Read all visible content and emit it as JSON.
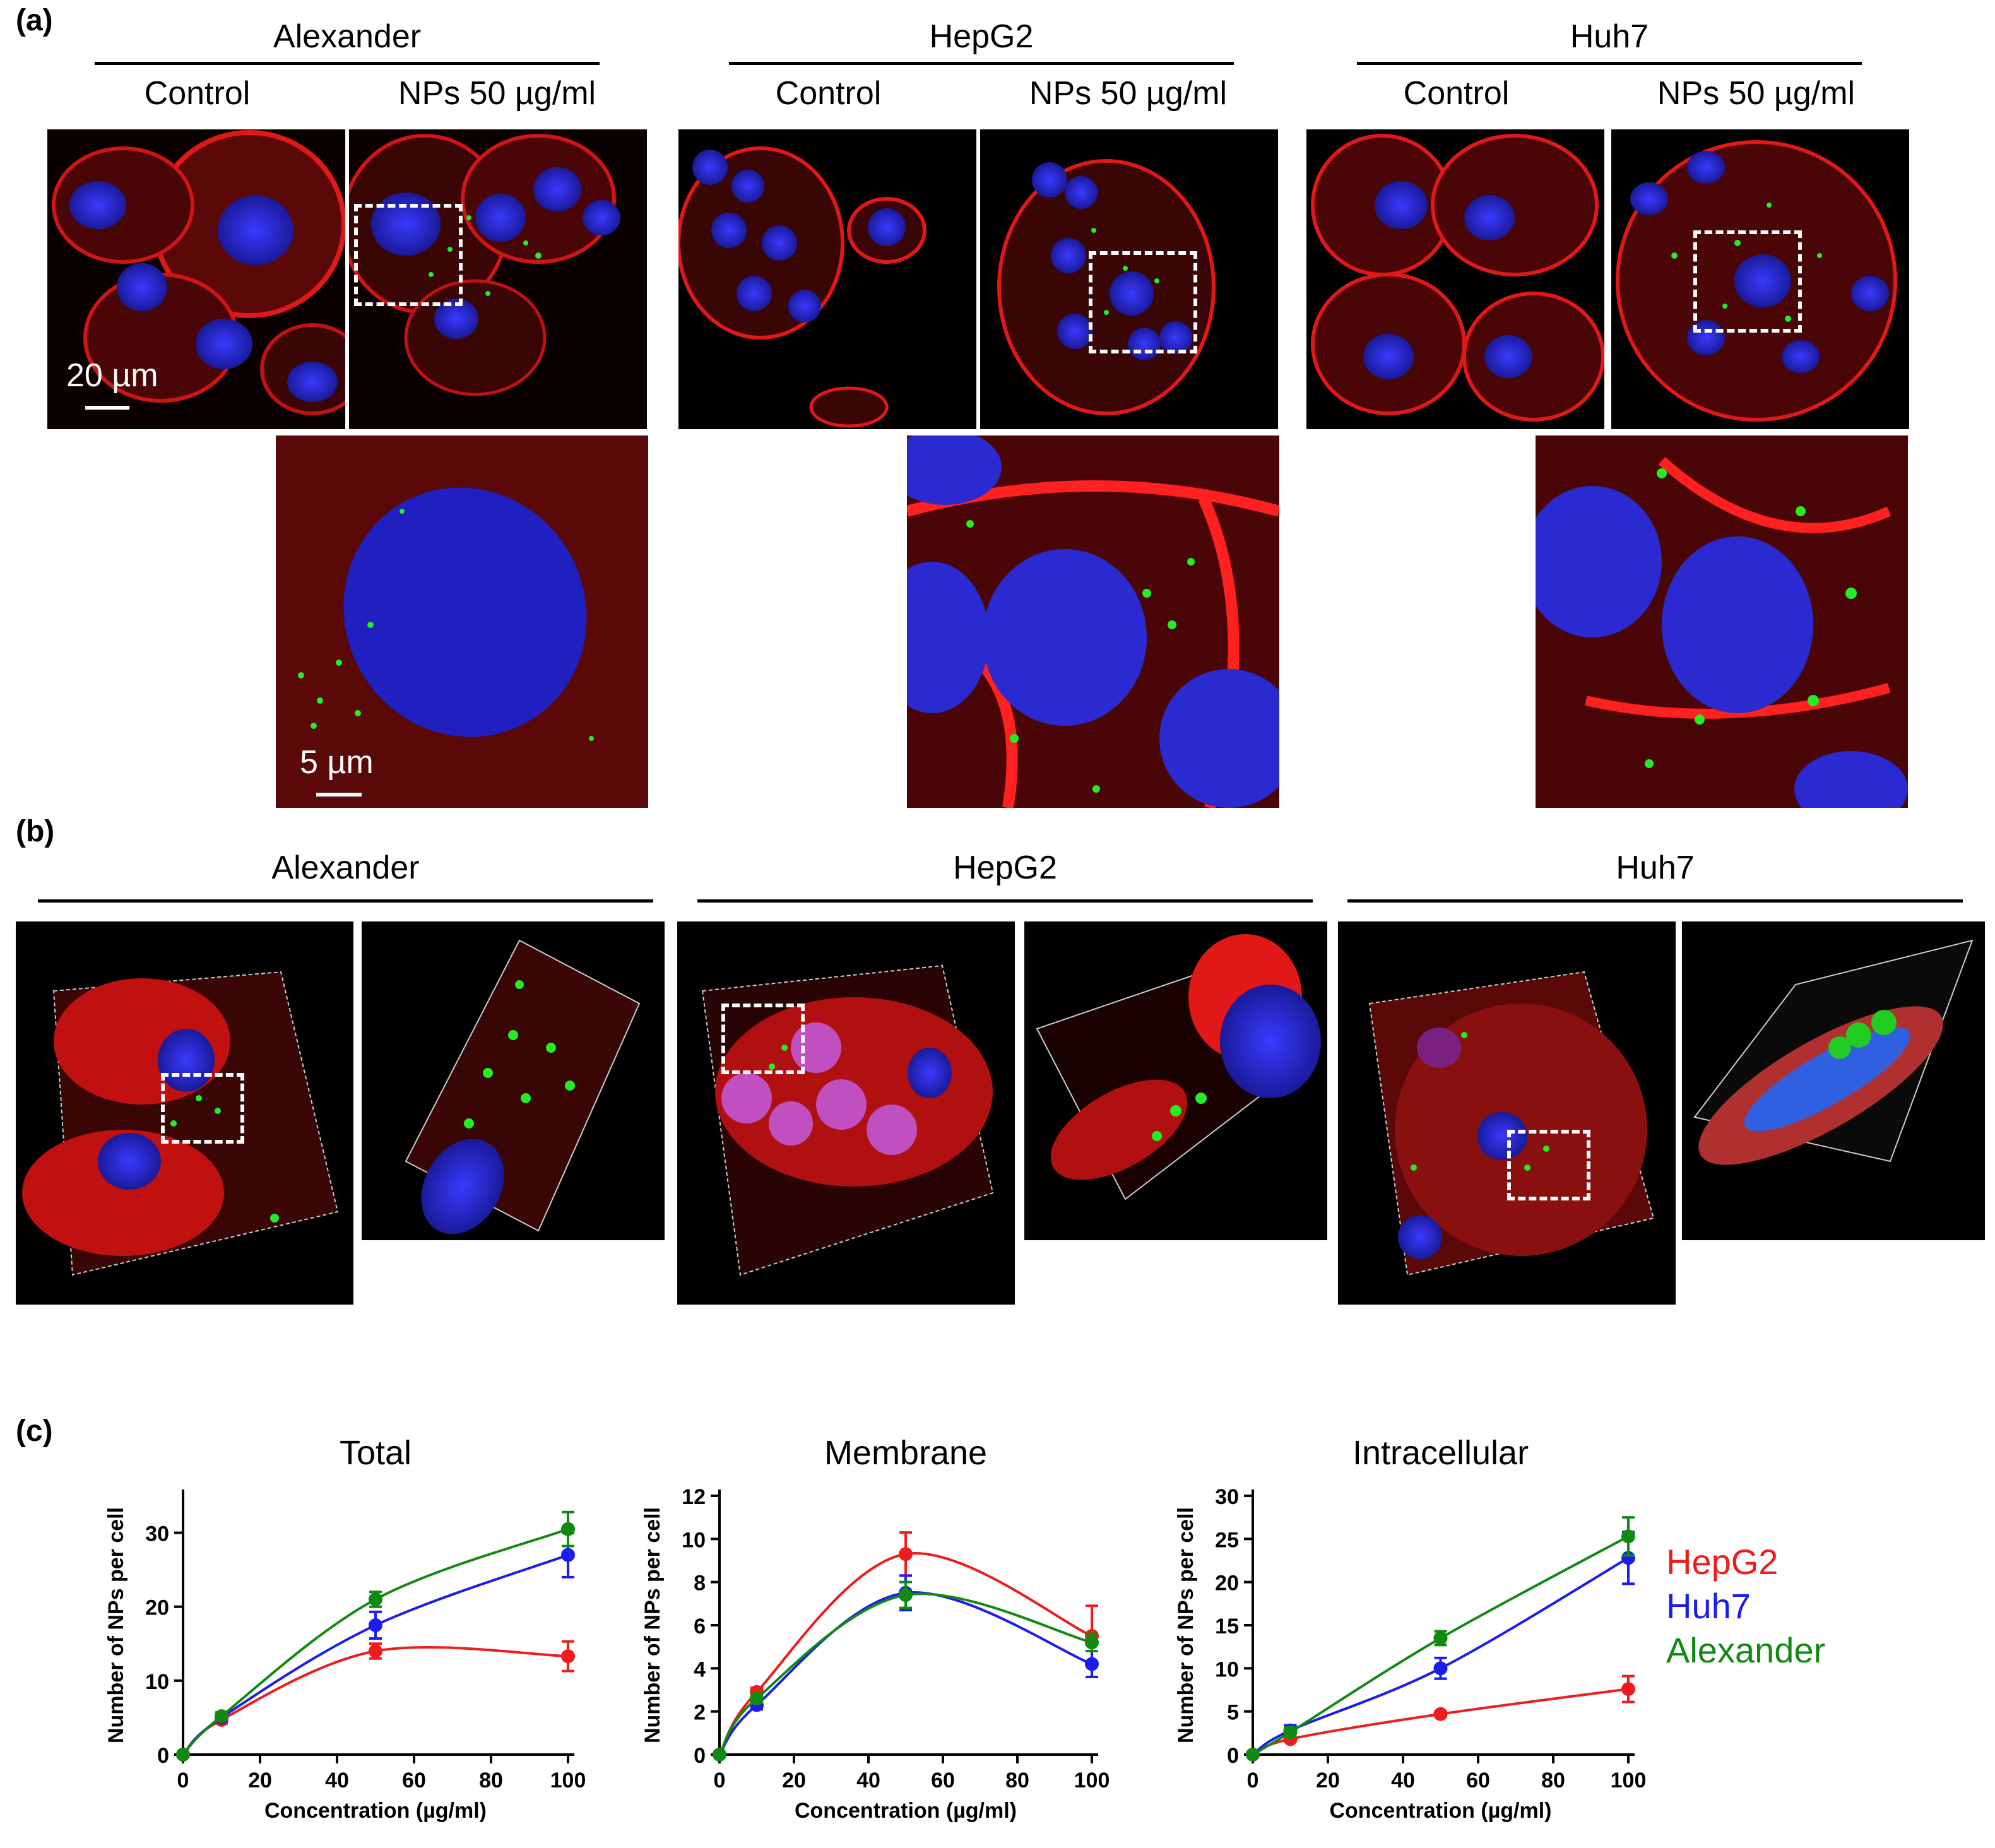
{
  "panels": {
    "a": "(a)",
    "b": "(b)",
    "c": "(c)"
  },
  "cells": [
    "Alexander",
    "HepG2",
    "Huh7"
  ],
  "conditions": {
    "control": "Control",
    "nps": "NPs 50 µg/ml"
  },
  "scalebars": {
    "large": "20 µm",
    "zoom": "5 µm"
  },
  "colors": {
    "HepG2": "#ee1c1c",
    "Huh7": "#1c1cee",
    "Alexander": "#128a12"
  },
  "chart_data": [
    {
      "type": "line",
      "title": "Total",
      "xlabel": "Concentration (µg/ml)",
      "ylabel": "Number of NPs per cell",
      "xlim": [
        0,
        100
      ],
      "ylim": [
        0,
        35
      ],
      "xticks": [
        0,
        20,
        40,
        60,
        80,
        100
      ],
      "yticks": [
        0,
        10,
        20,
        30
      ],
      "x": [
        0,
        10,
        50,
        100
      ],
      "series": [
        {
          "name": "HepG2",
          "values": [
            0,
            4.7,
            14.0,
            13.3
          ],
          "err": [
            0,
            0.5,
            1.0,
            2.0
          ]
        },
        {
          "name": "Huh7",
          "values": [
            0,
            5.0,
            17.5,
            27.0
          ],
          "err": [
            0,
            0.5,
            1.8,
            3.0
          ]
        },
        {
          "name": "Alexander",
          "values": [
            0,
            5.2,
            21.0,
            30.5
          ],
          "err": [
            0,
            0.5,
            1.0,
            2.3
          ]
        }
      ]
    },
    {
      "type": "line",
      "title": "Membrane",
      "xlabel": "Concentration (µg/ml)",
      "ylabel": "Number of NPs per cell",
      "xlim": [
        0,
        100
      ],
      "ylim": [
        0,
        12
      ],
      "xticks": [
        0,
        20,
        40,
        60,
        80,
        100
      ],
      "yticks": [
        0,
        2,
        4,
        6,
        8,
        10,
        12
      ],
      "x": [
        0,
        10,
        50,
        100
      ],
      "series": [
        {
          "name": "HepG2",
          "values": [
            0,
            2.9,
            9.3,
            5.5
          ],
          "err": [
            0,
            0.2,
            1.0,
            1.4
          ]
        },
        {
          "name": "Huh7",
          "values": [
            0,
            2.3,
            7.5,
            4.2
          ],
          "err": [
            0,
            0.2,
            0.8,
            0.6
          ]
        },
        {
          "name": "Alexander",
          "values": [
            0,
            2.6,
            7.4,
            5.2
          ],
          "err": [
            0,
            0.2,
            0.6,
            0.4
          ]
        }
      ]
    },
    {
      "type": "line",
      "title": "Intracellular",
      "xlabel": "Concentration (µg/ml)",
      "ylabel": "Number of NPs per cell",
      "xlim": [
        0,
        100
      ],
      "ylim": [
        0,
        30
      ],
      "xticks": [
        0,
        20,
        40,
        60,
        80,
        100
      ],
      "yticks": [
        0,
        5,
        10,
        15,
        20,
        25,
        30
      ],
      "x": [
        0,
        10,
        50,
        100
      ],
      "series": [
        {
          "name": "HepG2",
          "values": [
            0,
            1.8,
            4.7,
            7.6
          ],
          "err": [
            0,
            0.3,
            0.3,
            1.5
          ]
        },
        {
          "name": "Huh7",
          "values": [
            0,
            2.8,
            10.0,
            22.8
          ],
          "err": [
            0,
            0.6,
            1.2,
            3.0
          ]
        },
        {
          "name": "Alexander",
          "values": [
            0,
            2.6,
            13.5,
            25.3
          ],
          "err": [
            0,
            0.5,
            0.8,
            2.2
          ]
        }
      ]
    }
  ],
  "legend": [
    {
      "label": "HepG2"
    },
    {
      "label": "Huh7"
    },
    {
      "label": "Alexander"
    }
  ]
}
